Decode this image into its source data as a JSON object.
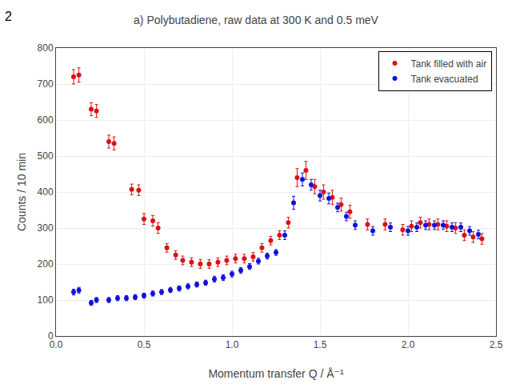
{
  "chart_data": {
    "type": "scatter",
    "title": "a) Polybutadiene, raw data at 300 K and 0.5 meV",
    "x_label": "Momentum transfer Q / Å⁻¹",
    "y_label": "Counts / 10 min",
    "annotations": [
      {
        "text": "2"
      }
    ],
    "xlim": [
      0.0,
      2.5
    ],
    "ylim": [
      0,
      800
    ],
    "xticks": [
      {
        "value": 0.0,
        "label": "0.0"
      },
      0.5,
      {
        "value": 1.0,
        "label": "1.0"
      },
      1.5,
      {
        "value": 2.0,
        "label": "2.0"
      },
      2.5
    ],
    "yticks": [
      0,
      100,
      200,
      300,
      400,
      500,
      600,
      700,
      800
    ],
    "grid": true,
    "legend": "upper right",
    "marker": "circle",
    "series": [
      {
        "name": "Tank filled with air",
        "color": "#dd1111",
        "x": [
          0.1,
          0.13,
          0.2,
          0.23,
          0.3,
          0.33,
          0.43,
          0.47,
          0.5,
          0.55,
          0.58,
          0.63,
          0.68,
          0.72,
          0.77,
          0.82,
          0.87,
          0.92,
          0.97,
          1.02,
          1.07,
          1.12,
          1.17,
          1.22,
          1.27,
          1.32,
          1.37,
          1.42,
          1.47,
          1.52,
          1.57,
          1.62,
          1.67,
          1.77,
          1.87,
          1.97,
          2.02,
          2.07,
          2.12,
          2.17,
          2.22,
          2.27,
          2.32,
          2.37,
          2.42
        ],
        "values": [
          720,
          725,
          630,
          625,
          540,
          535,
          407,
          405,
          325,
          320,
          300,
          245,
          225,
          210,
          205,
          200,
          200,
          205,
          210,
          215,
          215,
          220,
          245,
          265,
          280,
          315,
          440,
          460,
          415,
          400,
          385,
          365,
          345,
          310,
          310,
          295,
          305,
          315,
          310,
          310,
          305,
          300,
          280,
          275,
          270
        ],
        "error": [
          20,
          20,
          18,
          18,
          18,
          18,
          15,
          15,
          15,
          15,
          15,
          12,
          12,
          12,
          12,
          12,
          12,
          12,
          12,
          12,
          12,
          12,
          12,
          12,
          12,
          15,
          25,
          25,
          20,
          20,
          20,
          18,
          18,
          15,
          15,
          15,
          15,
          15,
          15,
          15,
          15,
          15,
          15,
          15,
          15
        ]
      },
      {
        "name": "Tank evacuated",
        "color": "#1111dd",
        "x": [
          0.1,
          0.13,
          0.2,
          0.23,
          0.3,
          0.35,
          0.4,
          0.45,
          0.5,
          0.55,
          0.6,
          0.65,
          0.7,
          0.75,
          0.8,
          0.85,
          0.9,
          0.95,
          1.0,
          1.05,
          1.1,
          1.15,
          1.2,
          1.25,
          1.3,
          1.35,
          1.4,
          1.45,
          1.5,
          1.55,
          1.6,
          1.65,
          1.7,
          1.8,
          1.9,
          2.0,
          2.05,
          2.1,
          2.15,
          2.2,
          2.25,
          2.3,
          2.35,
          2.4
        ],
        "values": [
          122,
          127,
          92,
          100,
          100,
          105,
          105,
          108,
          112,
          118,
          122,
          128,
          132,
          138,
          143,
          148,
          158,
          162,
          172,
          182,
          193,
          208,
          222,
          232,
          280,
          370,
          435,
          420,
          390,
          382,
          357,
          332,
          308,
          292,
          302,
          292,
          302,
          308,
          308,
          308,
          302,
          302,
          292,
          282
        ],
        "error": [
          8,
          8,
          7,
          7,
          7,
          7,
          7,
          7,
          7,
          7,
          7,
          7,
          7,
          7,
          7,
          7,
          8,
          8,
          8,
          8,
          8,
          8,
          8,
          8,
          12,
          18,
          18,
          15,
          15,
          15,
          12,
          12,
          12,
          12,
          12,
          12,
          12,
          12,
          12,
          12,
          12,
          12,
          12,
          12
        ]
      }
    ]
  }
}
